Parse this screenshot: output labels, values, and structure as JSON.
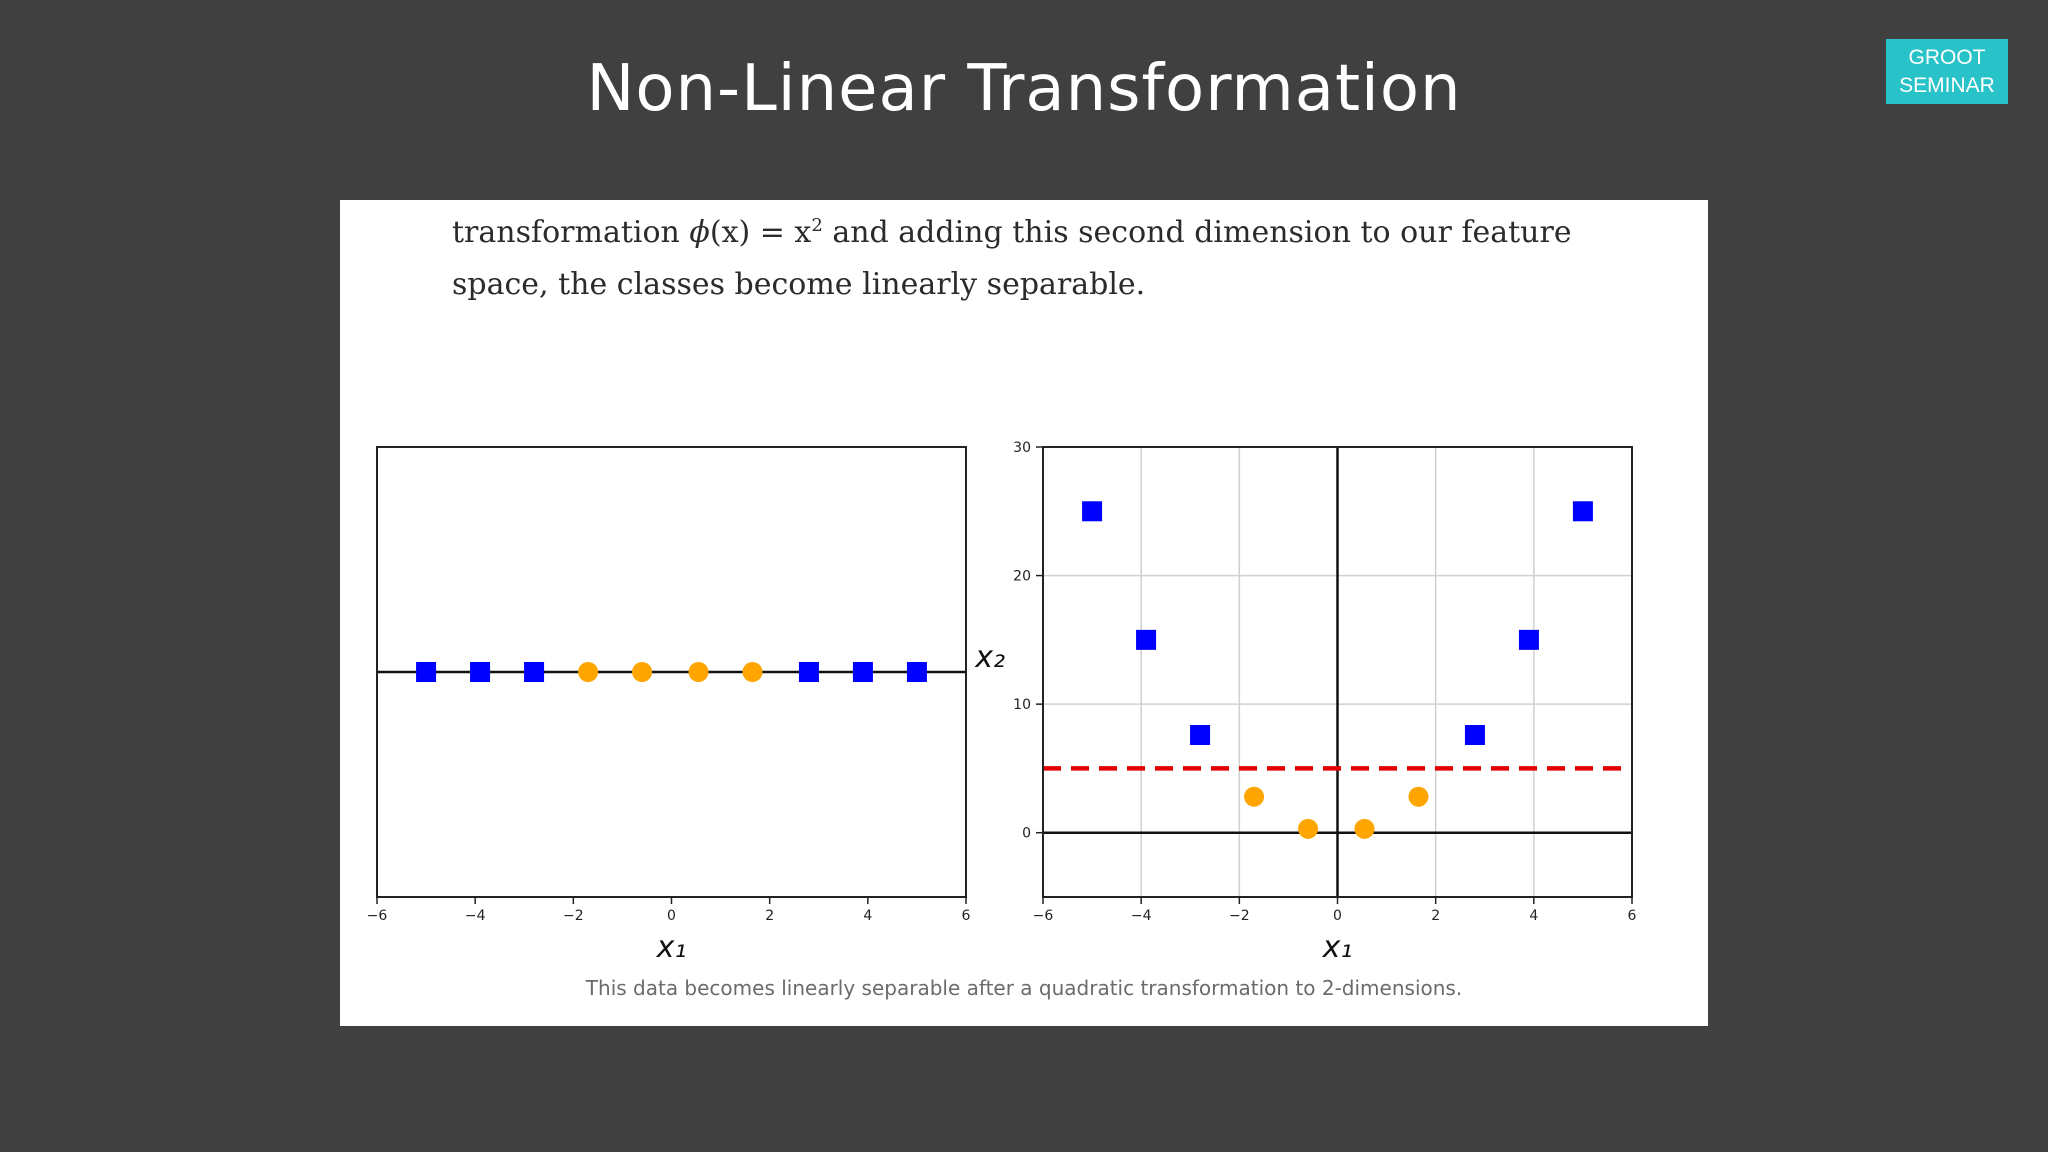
{
  "slide": {
    "title": "Non-Linear Transformation",
    "badge_line1": "GROOT",
    "badge_line2": "SEMINAR"
  },
  "excerpt": {
    "line1_a": "transformation ",
    "line1_phi": "ϕ",
    "line1_b": "(x) = x",
    "line1_sup": "2",
    "line1_c": " and adding this second dimension to our feature",
    "line2": "space, the classes become linearly separable."
  },
  "caption": "This data becomes linearly separable after a quadratic transformation to 2-dimensions.",
  "colors": {
    "background": "#404040",
    "badge": "#28c2c9",
    "square_series": "#0000ff",
    "circle_series": "#ffa500",
    "boundary": "#e60000"
  },
  "chart_data": [
    {
      "type": "scatter",
      "xlabel": "x₁",
      "ylabel": "",
      "xlim": [
        -6,
        6
      ],
      "xticks": [
        -6,
        -4,
        -2,
        0,
        2,
        4,
        6
      ],
      "xtick_labels": [
        "−6",
        "−4",
        "−2",
        "0",
        "2",
        "4",
        "6"
      ],
      "grid": false,
      "baseline_y": 0,
      "series": [
        {
          "marker": "square",
          "color": "#0000ff",
          "points": [
            [
              -5,
              0
            ],
            [
              -3.9,
              0
            ],
            [
              -2.8,
              0
            ],
            [
              2.8,
              0
            ],
            [
              3.9,
              0
            ],
            [
              5,
              0
            ]
          ]
        },
        {
          "marker": "circle",
          "color": "#ffa500",
          "points": [
            [
              -1.7,
              0
            ],
            [
              -0.6,
              0
            ],
            [
              0.55,
              0
            ],
            [
              1.65,
              0
            ]
          ]
        }
      ]
    },
    {
      "type": "scatter",
      "xlabel": "x₁",
      "ylabel": "x₂",
      "xlim": [
        -6,
        6
      ],
      "ylim": [
        -5,
        30
      ],
      "xticks": [
        -6,
        -4,
        -2,
        0,
        2,
        4,
        6
      ],
      "xtick_labels": [
        "−6",
        "−4",
        "−2",
        "0",
        "2",
        "4",
        "6"
      ],
      "yticks": [
        0,
        10,
        20,
        30
      ],
      "ytick_labels": [
        "0",
        "10",
        "20",
        "30"
      ],
      "grid": true,
      "series": [
        {
          "marker": "square",
          "color": "#0000ff",
          "points": [
            [
              -5,
              25
            ],
            [
              -3.9,
              15
            ],
            [
              -2.8,
              7.6
            ],
            [
              2.8,
              7.6
            ],
            [
              3.9,
              15
            ],
            [
              5,
              25
            ]
          ]
        },
        {
          "marker": "circle",
          "color": "#ffa500",
          "points": [
            [
              -1.7,
              2.8
            ],
            [
              -0.6,
              0.3
            ],
            [
              0.55,
              0.3
            ],
            [
              1.65,
              2.8
            ]
          ]
        }
      ],
      "decision_boundary": {
        "style": "dashed",
        "color": "#e60000",
        "y": 5
      }
    }
  ]
}
